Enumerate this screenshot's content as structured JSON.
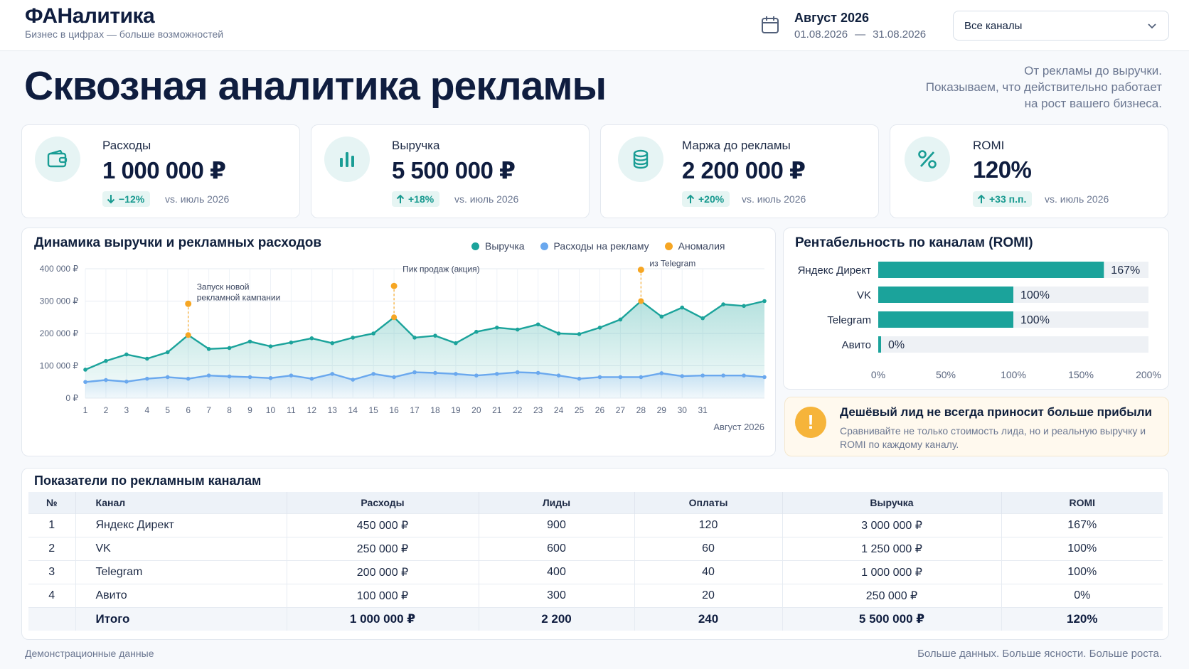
{
  "header": {
    "logo": "ФАНалитика",
    "tagline": "Бизнес в цифрах — больше возможностей",
    "period_title": "Август 2026",
    "period_start": "01.08.2026",
    "period_sep": "—",
    "period_end": "31.08.2026",
    "channel_select_value": "Все каналы"
  },
  "hero": {
    "title": "Сквозная аналитика рекламы",
    "subtitle_lines": [
      "От рекламы до выручки.",
      "Показываем, что действительно работает",
      "на рост вашего бизнеса."
    ]
  },
  "kpis": [
    {
      "label": "Расходы",
      "value": "1 000 000 ₽",
      "delta": "−12%",
      "direction": "down",
      "vs": "vs. июль 2026",
      "icon": "wallet-icon"
    },
    {
      "label": "Выручка",
      "value": "5 500 000 ₽",
      "delta": "+18%",
      "direction": "up",
      "vs": "vs. июль 2026",
      "icon": "bar-chart-icon"
    },
    {
      "label": "Маржа до рекламы",
      "value": "2 200 000 ₽",
      "delta": "+20%",
      "direction": "up",
      "vs": "vs. июль 2026",
      "icon": "coins-icon"
    },
    {
      "label": "ROMI",
      "value": "120%",
      "delta": "+33 п.п.",
      "direction": "up",
      "vs": "vs. июль 2026",
      "icon": "percent-icon"
    }
  ],
  "colors": {
    "teal": "#1ba39b",
    "blue": "#6aa8ee",
    "orange": "#f6a623",
    "navy": "#0f1d3f"
  },
  "trend_panel": {
    "title": "Динамика выручки и рекламных расходов",
    "legend": [
      "Выручка",
      "Расходы на рекламу",
      "Аномалия"
    ],
    "x_caption": "Август 2026"
  },
  "romi_panel": {
    "title": "Рентабельность по каналам (ROMI)"
  },
  "alert": {
    "title": "Дешёвый лид не всегда приносит больше прибыли",
    "text": "Сравнивайте не только стоимость лида, но и реальную выручку и ROMI по каждому каналу."
  },
  "table": {
    "title": "Показатели по рекламным каналам",
    "columns": [
      "№",
      "Канал",
      "Расходы",
      "Лиды",
      "Оплаты",
      "Выручка",
      "ROMI"
    ],
    "rows": [
      [
        "1",
        "Яндекс Директ",
        "450 000 ₽",
        "900",
        "120",
        "3 000 000 ₽",
        "167%"
      ],
      [
        "2",
        "VK",
        "250 000 ₽",
        "600",
        "60",
        "1 250 000 ₽",
        "100%"
      ],
      [
        "3",
        "Telegram",
        "200 000 ₽",
        "400",
        "40",
        "1 000 000 ₽",
        "100%"
      ],
      [
        "4",
        "Авито",
        "100 000 ₽",
        "300",
        "20",
        "250 000 ₽",
        "0%"
      ]
    ],
    "total": [
      "",
      "Итого",
      "1 000 000 ₽",
      "2 200",
      "240",
      "5 500 000 ₽",
      "120%"
    ]
  },
  "footer": {
    "left": "Демонстрационные данные",
    "right": "Больше данных. Больше ясности. Больше роста."
  },
  "chart_data": [
    {
      "type": "area",
      "title": "Динамика выручки и рекламных расходов",
      "xlabel": "Август 2026",
      "x": [
        1,
        2,
        3,
        4,
        5,
        6,
        7,
        8,
        9,
        10,
        11,
        12,
        13,
        14,
        15,
        16,
        17,
        18,
        19,
        20,
        21,
        22,
        23,
        24,
        25,
        26,
        27,
        28,
        29,
        30,
        31,
        32,
        33,
        34
      ],
      "x_tick_labels": [
        "1",
        "2",
        "3",
        "4",
        "5",
        "6",
        "7",
        "8",
        "9",
        "10",
        "11",
        "12",
        "13",
        "14",
        "15",
        "16",
        "17",
        "18",
        "19",
        "20",
        "21",
        "22",
        "23",
        "24",
        "25",
        "26",
        "27",
        "28",
        "29",
        "30",
        "31"
      ],
      "y_tick_labels": [
        "0 ₽",
        "100 000 ₽",
        "200 000 ₽",
        "300 000 ₽",
        "400 000 ₽"
      ],
      "ylim": [
        0,
        400000
      ],
      "grid": true,
      "legend_position": "top-right",
      "series": [
        {
          "name": "Выручка",
          "color": "#1ba39b",
          "values": [
            88000,
            115000,
            135000,
            122000,
            142000,
            195000,
            152000,
            155000,
            175000,
            160000,
            172000,
            185000,
            170000,
            187000,
            200000,
            250000,
            187000,
            193000,
            170000,
            205000,
            218000,
            212000,
            228000,
            200000,
            198000,
            218000,
            243000,
            300000,
            252000,
            280000,
            247000,
            290000,
            285000,
            300000
          ]
        },
        {
          "name": "Расходы на рекламу",
          "color": "#6aa8ee",
          "values": [
            50000,
            56000,
            51000,
            60000,
            65000,
            60000,
            70000,
            67000,
            65000,
            62000,
            70000,
            60000,
            75000,
            57000,
            75000,
            65000,
            80000,
            78000,
            75000,
            70000,
            75000,
            80000,
            78000,
            70000,
            60000,
            65000,
            65000,
            65000,
            77000,
            68000,
            70000,
            70000,
            70000,
            65000
          ]
        }
      ],
      "annotations": [
        {
          "x": 6,
          "value": 195000,
          "text": "Запуск новой рекламной кампании"
        },
        {
          "x": 16,
          "value": 250000,
          "text": "Пик продаж (акция)"
        },
        {
          "x": 28,
          "value": 300000,
          "text": "Рост выручки из Telegram"
        }
      ]
    },
    {
      "type": "bar",
      "orientation": "horizontal",
      "title": "Рентабельность по каналам (ROMI)",
      "categories": [
        "Яндекс Директ",
        "VK",
        "Telegram",
        "Авито"
      ],
      "values": [
        167,
        100,
        100,
        0
      ],
      "value_labels": [
        "167%",
        "100%",
        "100%",
        "0%"
      ],
      "x_tick_labels": [
        "0%",
        "50%",
        "100%",
        "150%",
        "200%"
      ],
      "xlim": [
        0,
        200
      ]
    }
  ]
}
